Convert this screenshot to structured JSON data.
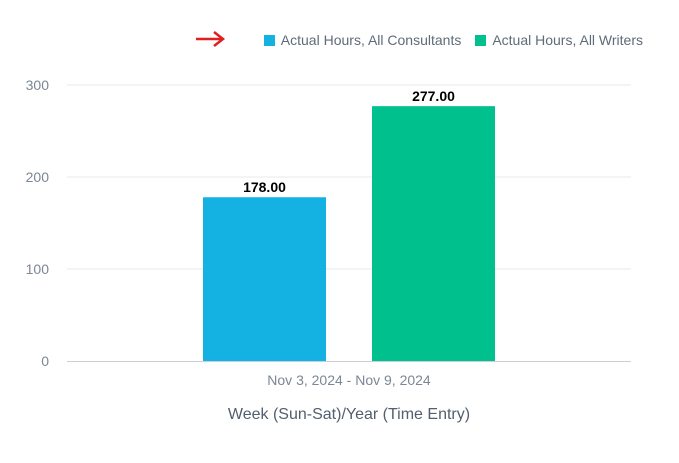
{
  "chart_data": {
    "type": "bar",
    "categories": [
      "Nov 3, 2024 - Nov 9, 2024"
    ],
    "series": [
      {
        "name": "Actual Hours, All Consultants",
        "values": [
          178.0
        ],
        "color": "#14b2e2"
      },
      {
        "name": "Actual Hours, All Writers",
        "values": [
          277.0
        ],
        "color": "#00c18d"
      }
    ],
    "data_labels": [
      "178.00",
      "277.00"
    ],
    "xlabel": "Week (Sun-Sat)/Year (Time Entry)",
    "ylabel": "",
    "ylim": [
      0,
      300
    ],
    "yticks": [
      0,
      100,
      200,
      300
    ],
    "grid": true,
    "legend_position": "top-right"
  },
  "annotation": {
    "icon": "red-arrow-icon",
    "color": "#e02020"
  }
}
